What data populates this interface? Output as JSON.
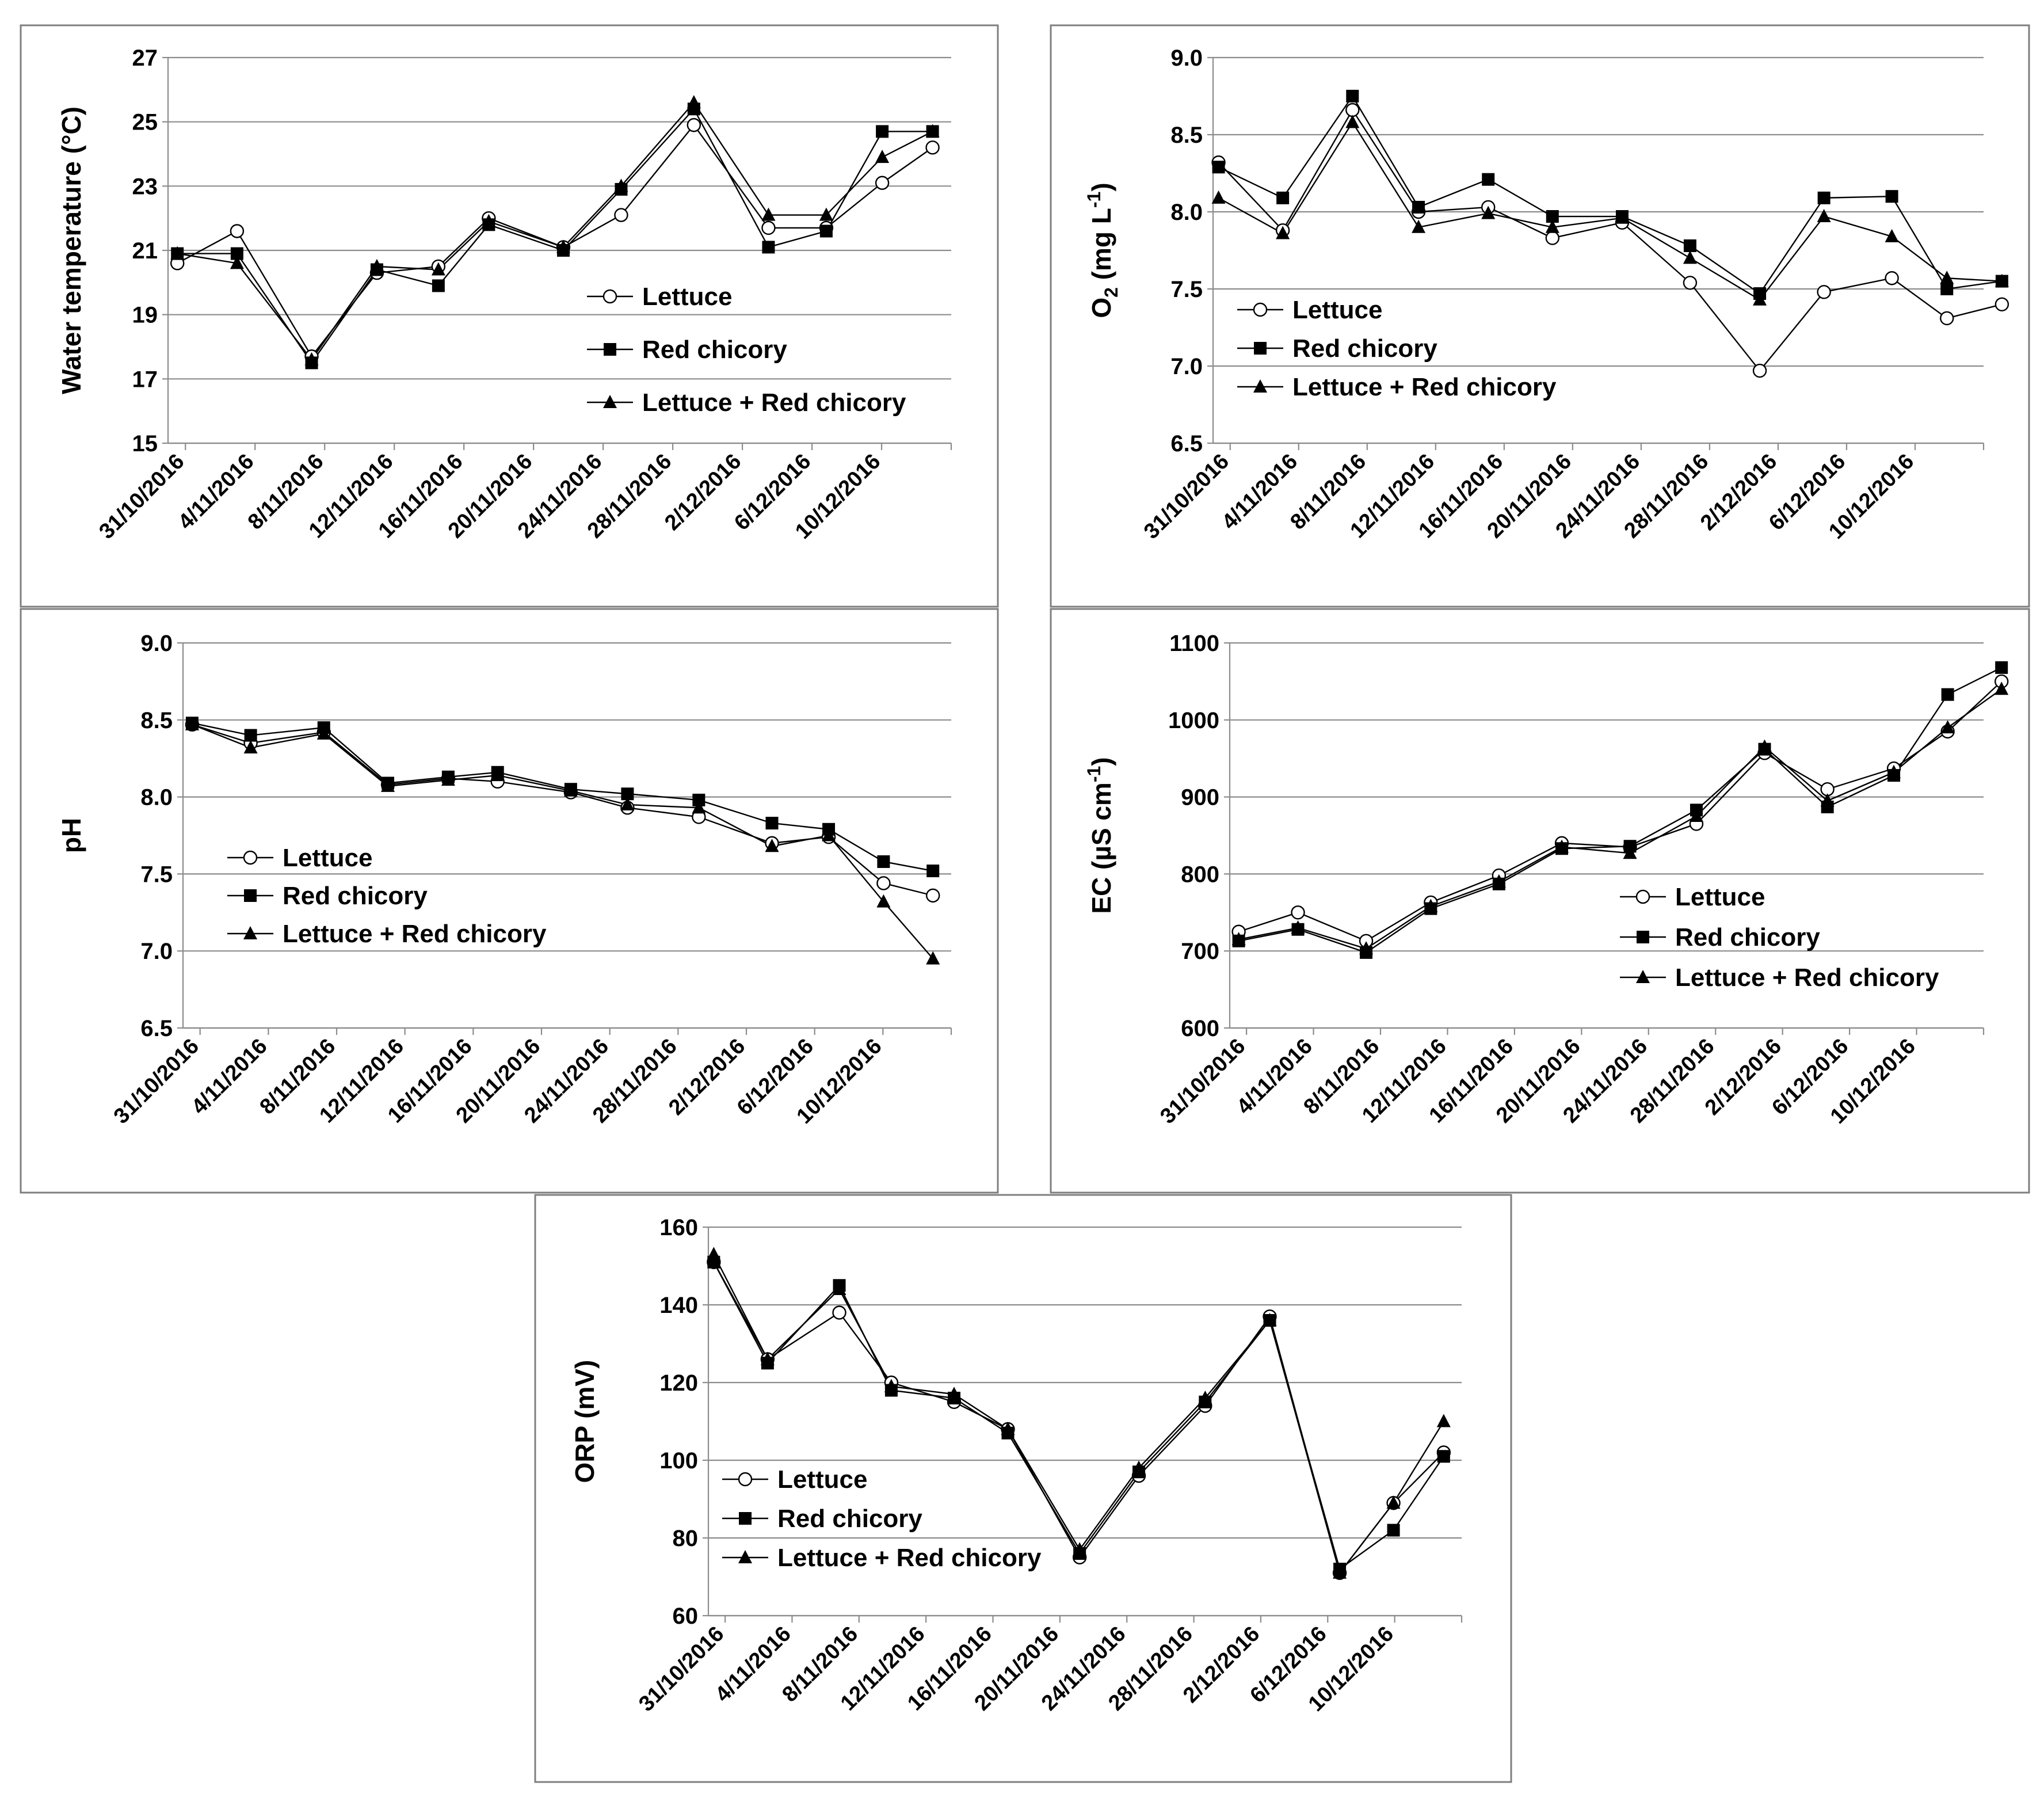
{
  "series_names": [
    "Lettuce",
    "Red chicory",
    "Lettuce + Red chicory"
  ],
  "x_tick_labels": [
    "31/10/2016",
    "4/11/2016",
    "8/11/2016",
    "12/11/2016",
    "16/11/2016",
    "20/11/2016",
    "24/11/2016",
    "28/11/2016",
    "2/12/2016",
    "6/12/2016",
    "10/12/2016"
  ],
  "colors": {
    "line": "#000000",
    "grid": "#8c8c8c",
    "border": "#7f7f7f",
    "background": "#ffffff"
  },
  "chart_data": [
    {
      "id": "water-temperature",
      "type": "line",
      "title": "",
      "ylabel": "Water temperature (°C)",
      "ylim": [
        15,
        27
      ],
      "yticks": [
        "15",
        "17",
        "19",
        "21",
        "23",
        "25",
        "27"
      ],
      "x_range": [
        0,
        42
      ],
      "legend": "right-middle",
      "series": [
        {
          "name": "Lettuce",
          "marker": "circle-open",
          "x": [
            0.5,
            3.7,
            7.7,
            11.2,
            14.5,
            17.2,
            21.2,
            24.3,
            28.2,
            32.2,
            35.3,
            38.3,
            41.0
          ],
          "values": [
            20.6,
            21.6,
            17.7,
            20.3,
            20.5,
            22.0,
            21.1,
            22.1,
            24.9,
            21.7,
            21.7,
            23.1,
            24.2
          ]
        },
        {
          "name": "Red chicory",
          "marker": "square",
          "x": [
            0.5,
            3.7,
            7.7,
            11.2,
            14.5,
            17.2,
            21.2,
            24.3,
            28.2,
            32.2,
            35.3,
            38.3,
            41.0
          ],
          "values": [
            20.9,
            20.9,
            17.5,
            20.4,
            19.9,
            21.8,
            21.0,
            22.9,
            25.4,
            21.1,
            21.6,
            24.7,
            24.7
          ]
        },
        {
          "name": "Lettuce + Red chicory",
          "marker": "triangle",
          "x": [
            0.5,
            3.7,
            7.7,
            11.2,
            14.5,
            17.2,
            21.2,
            24.3,
            28.2,
            32.2,
            35.3,
            38.3,
            41.0
          ],
          "values": [
            20.9,
            20.6,
            17.6,
            20.5,
            20.4,
            21.9,
            21.1,
            23.0,
            25.6,
            22.1,
            22.1,
            23.9,
            24.7
          ]
        }
      ]
    },
    {
      "id": "dissolved-oxygen",
      "type": "line",
      "title": "",
      "ylabel_main": "O",
      "ylabel_sub": "2",
      "ylabel_unit": " (mg L",
      "ylabel_sup": "-1",
      "ylabel_close": ")",
      "ylim": [
        6.5,
        9.0
      ],
      "yticks": [
        "6.5",
        "7.0",
        "7.5",
        "8.0",
        "8.5",
        "9.0"
      ],
      "x_range": [
        0,
        42
      ],
      "legend": "left-bottom",
      "series": [
        {
          "name": "Lettuce",
          "marker": "circle-open",
          "x": [
            0.3,
            3.8,
            7.6,
            11.2,
            15.0,
            18.5,
            22.3,
            26.0,
            29.8,
            33.3,
            37.0,
            40.0,
            43.0
          ],
          "values": [
            8.32,
            7.88,
            8.66,
            8.0,
            8.03,
            7.83,
            7.93,
            7.54,
            6.97,
            7.48,
            7.57,
            7.31,
            7.4
          ]
        },
        {
          "name": "Red chicory",
          "marker": "square",
          "x": [
            0.3,
            3.8,
            7.6,
            11.2,
            15.0,
            18.5,
            22.3,
            26.0,
            29.8,
            33.3,
            37.0,
            40.0,
            43.0
          ],
          "values": [
            8.29,
            8.09,
            8.75,
            8.03,
            8.21,
            7.97,
            7.97,
            7.78,
            7.47,
            8.09,
            8.1,
            7.5,
            7.55
          ]
        },
        {
          "name": "Lettuce + Red chicory",
          "marker": "triangle",
          "x": [
            0.3,
            3.8,
            7.6,
            11.2,
            15.0,
            18.5,
            22.3,
            26.0,
            29.8,
            33.3,
            37.0,
            40.0,
            43.0
          ],
          "values": [
            8.09,
            7.86,
            8.58,
            7.9,
            7.99,
            7.9,
            7.96,
            7.7,
            7.43,
            7.97,
            7.84,
            7.57,
            7.55
          ]
        }
      ]
    },
    {
      "id": "ph",
      "type": "line",
      "title": "",
      "ylabel": "pH",
      "ylim": [
        6.5,
        9.0
      ],
      "yticks": [
        "6.5",
        "7.0",
        "7.5",
        "8.0",
        "8.5",
        "9.0"
      ],
      "x_range": [
        0,
        42
      ],
      "legend": "left-bottom",
      "series": [
        {
          "name": "Lettuce",
          "marker": "circle-open",
          "x": [
            0.5,
            3.7,
            7.7,
            11.2,
            14.5,
            17.2,
            21.2,
            24.3,
            28.2,
            32.2,
            35.3,
            38.3,
            41.0
          ],
          "values": [
            8.47,
            8.35,
            8.42,
            8.08,
            8.12,
            8.1,
            8.03,
            7.93,
            7.87,
            7.7,
            7.74,
            7.44,
            7.36
          ]
        },
        {
          "name": "Red chicory",
          "marker": "square",
          "x": [
            0.5,
            3.7,
            7.7,
            11.2,
            14.5,
            17.2,
            21.2,
            24.3,
            28.2,
            32.2,
            35.3,
            38.3,
            41.0
          ],
          "values": [
            8.48,
            8.4,
            8.45,
            8.09,
            8.13,
            8.16,
            8.05,
            8.02,
            7.98,
            7.83,
            7.79,
            7.58,
            7.52
          ]
        },
        {
          "name": "Lettuce + Red chicory",
          "marker": "triangle",
          "x": [
            0.5,
            3.7,
            7.7,
            11.2,
            14.5,
            17.2,
            21.2,
            24.3,
            28.2,
            32.2,
            35.3,
            38.3,
            41.0
          ],
          "values": [
            8.47,
            8.32,
            8.41,
            8.07,
            8.11,
            8.14,
            8.04,
            7.95,
            7.93,
            7.68,
            7.75,
            7.32,
            6.95
          ]
        }
      ]
    },
    {
      "id": "electrical-conductivity",
      "type": "line",
      "title": "",
      "ylabel_main": "EC (µS cm",
      "ylabel_sup": "-1",
      "ylabel_close": ")",
      "ylim": [
        600,
        1100
      ],
      "yticks": [
        "600",
        "700",
        "800",
        "900",
        "1000",
        "1100"
      ],
      "x_range": [
        0,
        42
      ],
      "legend": "right-bottom",
      "series": [
        {
          "name": "Lettuce",
          "marker": "circle-open",
          "x": [
            0.5,
            3.8,
            7.6,
            11.2,
            15.0,
            18.5,
            22.3,
            26.0,
            29.8,
            33.3,
            37.0,
            40.0,
            43.0
          ],
          "values": [
            725,
            750,
            713,
            763,
            798,
            840,
            835,
            865,
            957,
            910,
            937,
            985,
            1050
          ]
        },
        {
          "name": "Red chicory",
          "marker": "square",
          "x": [
            0.5,
            3.8,
            7.6,
            11.2,
            15.0,
            18.5,
            22.3,
            26.0,
            29.8,
            33.3,
            37.0,
            40.0,
            43.0
          ],
          "values": [
            713,
            728,
            698,
            755,
            787,
            833,
            836,
            883,
            962,
            887,
            928,
            1033,
            1068
          ]
        },
        {
          "name": "Lettuce + Red chicory",
          "marker": "triangle",
          "x": [
            0.5,
            3.8,
            7.6,
            11.2,
            15.0,
            18.5,
            22.3,
            26.0,
            29.8,
            33.3,
            37.0,
            40.0,
            43.0
          ],
          "values": [
            715,
            730,
            703,
            758,
            790,
            835,
            827,
            875,
            965,
            895,
            932,
            990,
            1040
          ]
        }
      ]
    },
    {
      "id": "orp",
      "type": "line",
      "title": "",
      "ylabel": "ORP (mV)",
      "ylim": [
        60,
        160
      ],
      "yticks": [
        "60",
        "80",
        "100",
        "120",
        "140",
        "160"
      ],
      "x_range": [
        0,
        42
      ],
      "legend": "left-bottom",
      "series": [
        {
          "name": "Lettuce",
          "marker": "circle-open",
          "x": [
            0.3,
            3.3,
            7.3,
            10.2,
            13.7,
            16.7,
            20.7,
            24.0,
            27.7,
            31.3,
            35.2,
            38.2,
            41.0
          ],
          "values": [
            151,
            126,
            138,
            120,
            115,
            108,
            75,
            96,
            114,
            137,
            71,
            89,
            102
          ]
        },
        {
          "name": "Red chicory",
          "marker": "square",
          "x": [
            0.3,
            3.3,
            7.3,
            10.2,
            13.7,
            16.7,
            20.7,
            24.0,
            27.7,
            31.3,
            35.2,
            38.2,
            41.0
          ],
          "values": [
            151,
            125,
            145,
            118,
            116,
            107,
            76,
            97,
            115,
            136,
            72,
            82,
            101
          ]
        },
        {
          "name": "Lettuce + Red chicory",
          "marker": "triangle",
          "x": [
            0.3,
            3.3,
            7.3,
            10.2,
            13.7,
            16.7,
            20.7,
            24.0,
            27.7,
            31.3,
            35.2,
            38.2,
            41.0
          ],
          "values": [
            153,
            126,
            144,
            119,
            117,
            108,
            77,
            98,
            116,
            136,
            71,
            89,
            110
          ]
        }
      ]
    }
  ]
}
